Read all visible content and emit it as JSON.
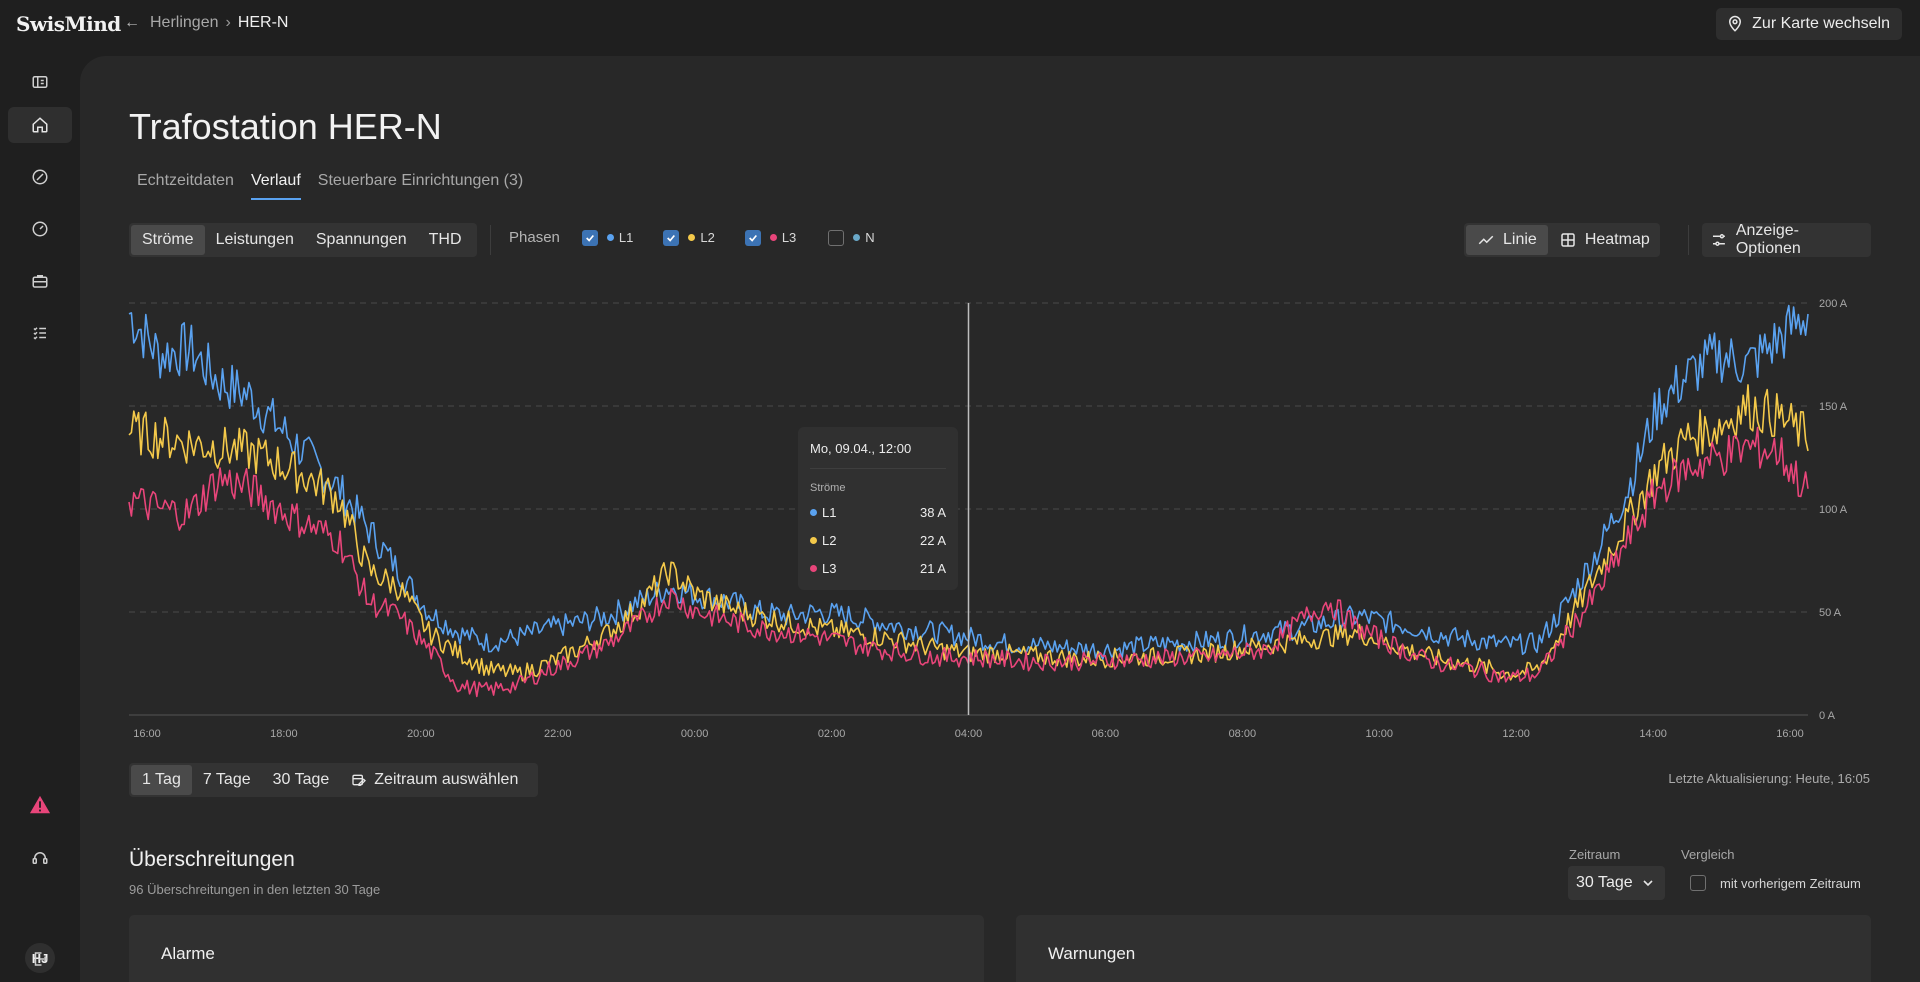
{
  "header": {
    "logo": "SwisMind",
    "breadcrumb_parent": "Herlingen",
    "breadcrumb_current": "HER-N",
    "map_button_label": "Zur Karte wechseln"
  },
  "sidebar": {
    "icons": [
      "dashboard-icon",
      "home-icon",
      "tag-icon",
      "gauge-icon",
      "briefcase-icon",
      "checklist-icon"
    ],
    "bottom_icons": [
      "alert-icon",
      "support-icon",
      "logout-icon"
    ],
    "avatar": "HJ"
  },
  "page": {
    "title": "Trafostation HER-N",
    "tabs": [
      "Echtzeitdaten",
      "Verlauf",
      "Steuerbare Einrichtungen (3)"
    ],
    "active_tab": "Verlauf"
  },
  "metrics": {
    "options": [
      "Ströme",
      "Leistungen",
      "Spannungen",
      "THD"
    ],
    "selected": "Ströme"
  },
  "phases": {
    "label": "Phasen",
    "items": [
      {
        "name": "L1",
        "checked": true,
        "color": "#5aa2f0"
      },
      {
        "name": "L2",
        "checked": true,
        "color": "#f4c94a"
      },
      {
        "name": "L3",
        "checked": true,
        "color": "#e8457a"
      },
      {
        "name": "N",
        "checked": false,
        "color": "#6aa8c8"
      }
    ]
  },
  "view": {
    "line_label": "Linie",
    "heatmap_label": "Heatmap",
    "options_label": "Anzeige-Optionen"
  },
  "tooltip": {
    "title": "Mo, 09.04., 12:00",
    "subtitle": "Ströme",
    "rows": [
      {
        "name": "L1",
        "value": "38 A"
      },
      {
        "name": "L2",
        "value": "22 A"
      },
      {
        "name": "L3",
        "value": "21 A"
      }
    ]
  },
  "chart_data": {
    "type": "line",
    "x_ticks": [
      "16:00",
      "18:00",
      "20:00",
      "22:00",
      "00:00",
      "02:00",
      "04:00",
      "06:00",
      "08:00",
      "10:00",
      "12:00",
      "14:00",
      "16:00"
    ],
    "y_ticks": [
      "0 A",
      "50 A",
      "100 A",
      "150 A",
      "200 A"
    ],
    "ylim": [
      0,
      200
    ],
    "grid": true,
    "cursor_x": 12,
    "series": [
      {
        "name": "L1",
        "color": "#5aa2f0",
        "values": [
          195,
          175,
          178,
          162,
          155,
          140,
          125,
          110,
          90,
          70,
          50,
          40,
          35,
          38,
          42,
          45,
          48,
          55,
          62,
          58,
          55,
          50,
          48,
          50,
          48,
          45,
          42,
          40,
          38,
          35,
          34,
          33,
          32,
          32,
          34,
          35,
          36,
          38,
          40,
          42,
          45,
          48,
          45,
          42,
          38,
          36,
          34,
          35,
          55,
          80,
          110,
          150,
          165,
          175,
          170,
          182,
          195
        ]
      },
      {
        "name": "L2",
        "color": "#f4c94a",
        "values": [
          138,
          135,
          132,
          130,
          128,
          122,
          115,
          105,
          70,
          62,
          40,
          30,
          22,
          20,
          25,
          32,
          40,
          52,
          70,
          58,
          52,
          48,
          45,
          42,
          40,
          38,
          35,
          32,
          30,
          30,
          29,
          28,
          27,
          28,
          28,
          29,
          30,
          32,
          34,
          36,
          38,
          40,
          35,
          30,
          26,
          24,
          20,
          22,
          45,
          70,
          95,
          120,
          135,
          140,
          150,
          145,
          135
        ]
      },
      {
        "name": "L3",
        "color": "#e8457a",
        "values": [
          105,
          100,
          98,
          115,
          110,
          100,
          92,
          85,
          55,
          48,
          32,
          14,
          12,
          15,
          22,
          28,
          35,
          45,
          58,
          50,
          46,
          42,
          40,
          38,
          35,
          32,
          30,
          28,
          28,
          27,
          26,
          26,
          26,
          27,
          27,
          28,
          28,
          30,
          32,
          45,
          55,
          42,
          35,
          28,
          24,
          22,
          18,
          20,
          40,
          60,
          85,
          110,
          120,
          125,
          130,
          128,
          108
        ]
      }
    ]
  },
  "range": {
    "options": [
      "1 Tag",
      "7 Tage",
      "30 Tage"
    ],
    "selected": "1 Tag",
    "custom_label": "Zeitraum auswählen",
    "updated": "Letzte Aktualisierung: Heute, 16:05"
  },
  "exceedances": {
    "title": "Überschreitungen",
    "subtitle": "96 Überschreitungen in den letzten 30 Tage",
    "period_label": "Zeitraum",
    "period_value": "30 Tage",
    "compare_label": "Vergleich",
    "compare_text": "mit vorherigem Zeitraum",
    "cards": [
      "Alarme",
      "Warnungen"
    ]
  }
}
